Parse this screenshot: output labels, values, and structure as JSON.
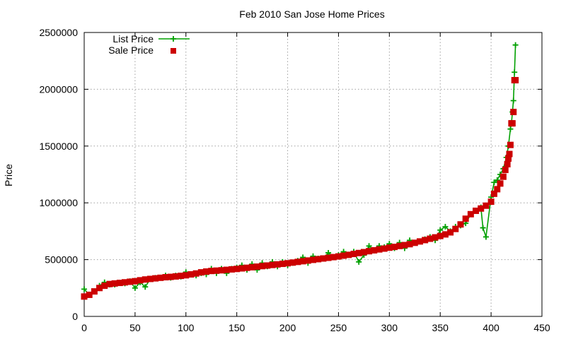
{
  "chart_data": {
    "type": "line",
    "title": "Feb 2010 San Jose Home Prices",
    "xlabel": "",
    "ylabel": "Price",
    "xlim": [
      0,
      450
    ],
    "ylim": [
      0,
      2500000
    ],
    "xticks": [
      0,
      50,
      100,
      150,
      200,
      250,
      300,
      350,
      400,
      450
    ],
    "yticks": [
      0,
      500000,
      1000000,
      1500000,
      2000000,
      2500000
    ],
    "xtick_labels": [
      "0",
      "50",
      "100",
      "150",
      "200",
      "250",
      "300",
      "350",
      "400",
      "450"
    ],
    "ytick_labels": [
      "0",
      "500000",
      "1000000",
      "1500000",
      "2000000",
      "2500000"
    ],
    "grid": true,
    "legend_position": "top-left",
    "series": [
      {
        "name": "List Price",
        "style": "line with plus markers",
        "color": "#00a000",
        "x": [
          0,
          5,
          10,
          15,
          20,
          25,
          30,
          40,
          45,
          50,
          55,
          60,
          65,
          70,
          75,
          80,
          85,
          90,
          95,
          100,
          105,
          110,
          115,
          120,
          125,
          130,
          135,
          140,
          145,
          150,
          155,
          160,
          165,
          170,
          175,
          180,
          185,
          190,
          195,
          200,
          205,
          210,
          215,
          220,
          225,
          230,
          235,
          240,
          245,
          250,
          255,
          260,
          265,
          270,
          275,
          280,
          285,
          290,
          295,
          300,
          305,
          310,
          315,
          320,
          325,
          330,
          335,
          340,
          345,
          350,
          355,
          360,
          365,
          370,
          375,
          380,
          385,
          390,
          392,
          395,
          400,
          403,
          406,
          409,
          412,
          415,
          417,
          419,
          420,
          421,
          422,
          423,
          424
        ],
        "y": [
          240000,
          190000,
          220000,
          270000,
          300000,
          280000,
          280000,
          290000,
          310000,
          250000,
          300000,
          260000,
          330000,
          340000,
          340000,
          360000,
          340000,
          360000,
          350000,
          390000,
          370000,
          360000,
          380000,
          370000,
          420000,
          380000,
          420000,
          380000,
          420000,
          430000,
          450000,
          410000,
          460000,
          410000,
          470000,
          440000,
          480000,
          440000,
          480000,
          450000,
          470000,
          490000,
          520000,
          470000,
          530000,
          510000,
          510000,
          560000,
          520000,
          540000,
          570000,
          540000,
          570000,
          480000,
          540000,
          620000,
          580000,
          620000,
          610000,
          640000,
          600000,
          650000,
          600000,
          670000,
          650000,
          660000,
          680000,
          700000,
          670000,
          760000,
          790000,
          750000,
          790000,
          800000,
          820000,
          900000,
          930000,
          960000,
          780000,
          700000,
          1050000,
          1180000,
          1200000,
          1250000,
          1300000,
          1400000,
          1500000,
          1650000,
          1700000,
          1800000,
          1900000,
          2150000,
          2390000
        ]
      },
      {
        "name": "Sale Price",
        "style": "filled square markers",
        "color": "#cc0000",
        "x": [
          0,
          5,
          10,
          15,
          20,
          25,
          30,
          35,
          40,
          45,
          50,
          55,
          60,
          65,
          70,
          75,
          80,
          85,
          90,
          95,
          100,
          105,
          110,
          115,
          120,
          125,
          130,
          135,
          140,
          145,
          150,
          155,
          160,
          165,
          170,
          175,
          180,
          185,
          190,
          195,
          200,
          205,
          210,
          215,
          220,
          225,
          230,
          235,
          240,
          245,
          250,
          255,
          260,
          265,
          270,
          275,
          280,
          285,
          290,
          295,
          300,
          305,
          310,
          315,
          320,
          325,
          330,
          335,
          340,
          345,
          350,
          355,
          360,
          365,
          370,
          375,
          380,
          385,
          390,
          395,
          400,
          403,
          406,
          409,
          412,
          414,
          416,
          417,
          418,
          419,
          420,
          421,
          422,
          423,
          424
        ],
        "y": [
          175000,
          190000,
          220000,
          250000,
          270000,
          285000,
          290000,
          295000,
          300000,
          305000,
          310000,
          318000,
          325000,
          330000,
          335000,
          340000,
          345000,
          348000,
          352000,
          357000,
          362000,
          370000,
          378000,
          388000,
          395000,
          400000,
          403000,
          406000,
          410000,
          414000,
          418000,
          423000,
          428000,
          433000,
          438000,
          443000,
          448000,
          453000,
          458000,
          463000,
          468000,
          474000,
          480000,
          486000,
          492000,
          498000,
          504000,
          510000,
          516000,
          522000,
          528000,
          535000,
          542000,
          550000,
          558000,
          566000,
          574000,
          582000,
          590000,
          597000,
          605000,
          612000,
          620000,
          628000,
          636000,
          648000,
          660000,
          672000,
          684000,
          696000,
          708000,
          722000,
          740000,
          770000,
          810000,
          860000,
          900000,
          930000,
          950000,
          975000,
          1010000,
          1080000,
          1120000,
          1170000,
          1230000,
          1290000,
          1340000,
          1390000,
          1430000,
          1510000,
          1700000,
          1700000,
          1800000,
          2080000,
          2080000
        ]
      }
    ]
  }
}
